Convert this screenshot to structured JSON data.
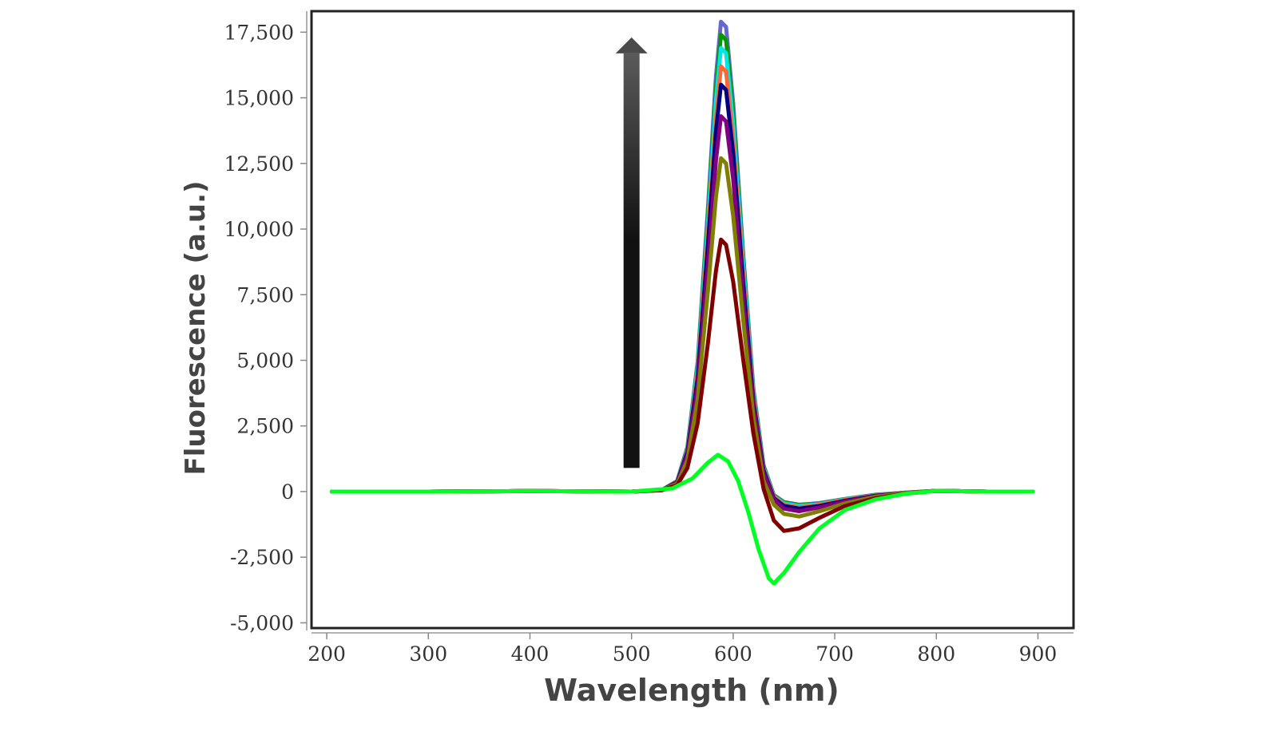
{
  "chart_data": {
    "type": "line",
    "title": "",
    "xlabel": "Wavelength (nm)",
    "ylabel": "Fluorescence (a.u.)",
    "xlim": [
      185,
      935
    ],
    "ylim": [
      -5200,
      18300
    ],
    "x_ticks": [
      200,
      300,
      400,
      500,
      600,
      700,
      800,
      900
    ],
    "x_tick_labels": [
      "200",
      "300",
      "400",
      "500",
      "600",
      "700",
      "800",
      "900"
    ],
    "y_ticks": [
      -5000,
      -2500,
      0,
      2500,
      5000,
      7500,
      10000,
      12500,
      15000,
      17500
    ],
    "y_tick_labels": [
      "-5,000",
      "-2,500",
      "0",
      "2,500",
      "5,000",
      "7,500",
      "10,000",
      "12,500",
      "15,000",
      "17,500"
    ],
    "grid": false,
    "legend": "none",
    "annotation": {
      "type": "arrow",
      "direction": "up",
      "x": 500,
      "y_from": 900,
      "y_to": 17300,
      "color": "#111111"
    },
    "series": [
      {
        "color": "#00ff22",
        "values": [
          [
            205,
            0
          ],
          [
            300,
            0
          ],
          [
            400,
            20
          ],
          [
            500,
            0
          ],
          [
            540,
            120
          ],
          [
            560,
            500
          ],
          [
            575,
            1100
          ],
          [
            585,
            1400
          ],
          [
            595,
            1150
          ],
          [
            605,
            400
          ],
          [
            615,
            -800
          ],
          [
            625,
            -2200
          ],
          [
            635,
            -3300
          ],
          [
            640,
            -3500
          ],
          [
            650,
            -3100
          ],
          [
            665,
            -2300
          ],
          [
            685,
            -1400
          ],
          [
            710,
            -700
          ],
          [
            740,
            -300
          ],
          [
            770,
            -80
          ],
          [
            800,
            30
          ],
          [
            850,
            0
          ],
          [
            895,
            0
          ]
        ]
      },
      {
        "color": "#800000",
        "values": [
          [
            205,
            0
          ],
          [
            300,
            0
          ],
          [
            400,
            20
          ],
          [
            500,
            0
          ],
          [
            530,
            50
          ],
          [
            545,
            250
          ],
          [
            555,
            900
          ],
          [
            565,
            2600
          ],
          [
            575,
            5600
          ],
          [
            583,
            8400
          ],
          [
            588,
            9600
          ],
          [
            593,
            9400
          ],
          [
            600,
            8000
          ],
          [
            610,
            5000
          ],
          [
            620,
            2200
          ],
          [
            630,
            100
          ],
          [
            640,
            -1100
          ],
          [
            650,
            -1500
          ],
          [
            665,
            -1400
          ],
          [
            685,
            -1000
          ],
          [
            710,
            -550
          ],
          [
            740,
            -250
          ],
          [
            770,
            -80
          ],
          [
            800,
            30
          ],
          [
            850,
            0
          ],
          [
            895,
            0
          ]
        ]
      },
      {
        "color": "#808000",
        "values": [
          [
            205,
            0
          ],
          [
            300,
            0
          ],
          [
            400,
            20
          ],
          [
            500,
            0
          ],
          [
            530,
            60
          ],
          [
            545,
            300
          ],
          [
            555,
            1200
          ],
          [
            565,
            3500
          ],
          [
            575,
            7600
          ],
          [
            583,
            11200
          ],
          [
            588,
            12700
          ],
          [
            593,
            12500
          ],
          [
            600,
            10500
          ],
          [
            610,
            6500
          ],
          [
            620,
            2800
          ],
          [
            630,
            400
          ],
          [
            640,
            -500
          ],
          [
            650,
            -850
          ],
          [
            665,
            -950
          ],
          [
            685,
            -750
          ],
          [
            710,
            -450
          ],
          [
            740,
            -200
          ],
          [
            770,
            -60
          ],
          [
            800,
            30
          ],
          [
            850,
            0
          ],
          [
            895,
            0
          ]
        ]
      },
      {
        "color": "#800080",
        "values": [
          [
            205,
            0
          ],
          [
            300,
            0
          ],
          [
            400,
            20
          ],
          [
            500,
            0
          ],
          [
            530,
            60
          ],
          [
            545,
            350
          ],
          [
            555,
            1400
          ],
          [
            565,
            4000
          ],
          [
            575,
            8600
          ],
          [
            583,
            12600
          ],
          [
            588,
            14300
          ],
          [
            593,
            14100
          ],
          [
            600,
            11900
          ],
          [
            610,
            7300
          ],
          [
            620,
            3200
          ],
          [
            630,
            700
          ],
          [
            640,
            -300
          ],
          [
            650,
            -650
          ],
          [
            665,
            -750
          ],
          [
            685,
            -600
          ],
          [
            710,
            -380
          ],
          [
            740,
            -180
          ],
          [
            770,
            -50
          ],
          [
            800,
            30
          ],
          [
            850,
            0
          ],
          [
            895,
            0
          ]
        ]
      },
      {
        "color": "#000080",
        "values": [
          [
            205,
            0
          ],
          [
            300,
            0
          ],
          [
            400,
            20
          ],
          [
            500,
            0
          ],
          [
            530,
            60
          ],
          [
            545,
            370
          ],
          [
            555,
            1500
          ],
          [
            565,
            4300
          ],
          [
            575,
            9300
          ],
          [
            583,
            13700
          ],
          [
            588,
            15500
          ],
          [
            593,
            15300
          ],
          [
            600,
            12900
          ],
          [
            610,
            7900
          ],
          [
            620,
            3400
          ],
          [
            630,
            800
          ],
          [
            640,
            -250
          ],
          [
            650,
            -550
          ],
          [
            665,
            -650
          ],
          [
            685,
            -550
          ],
          [
            710,
            -350
          ],
          [
            740,
            -160
          ],
          [
            770,
            -50
          ],
          [
            800,
            30
          ],
          [
            850,
            0
          ],
          [
            895,
            0
          ]
        ]
      },
      {
        "color": "#ff6633",
        "values": [
          [
            205,
            0
          ],
          [
            300,
            0
          ],
          [
            400,
            20
          ],
          [
            500,
            0
          ],
          [
            530,
            60
          ],
          [
            545,
            380
          ],
          [
            555,
            1550
          ],
          [
            565,
            4500
          ],
          [
            575,
            9700
          ],
          [
            583,
            14200
          ],
          [
            588,
            16200
          ],
          [
            593,
            16000
          ],
          [
            600,
            13400
          ],
          [
            610,
            8200
          ],
          [
            620,
            3600
          ],
          [
            630,
            850
          ],
          [
            640,
            -200
          ],
          [
            650,
            -500
          ],
          [
            665,
            -600
          ],
          [
            685,
            -500
          ],
          [
            710,
            -320
          ],
          [
            740,
            -150
          ],
          [
            770,
            -40
          ],
          [
            800,
            30
          ],
          [
            850,
            0
          ],
          [
            895,
            0
          ]
        ]
      },
      {
        "color": "#00e5e5",
        "values": [
          [
            205,
            0
          ],
          [
            300,
            0
          ],
          [
            400,
            20
          ],
          [
            500,
            0
          ],
          [
            530,
            60
          ],
          [
            545,
            390
          ],
          [
            555,
            1600
          ],
          [
            565,
            4700
          ],
          [
            575,
            10100
          ],
          [
            583,
            14900
          ],
          [
            588,
            16900
          ],
          [
            593,
            16700
          ],
          [
            600,
            14000
          ],
          [
            610,
            8600
          ],
          [
            620,
            3700
          ],
          [
            630,
            900
          ],
          [
            640,
            -180
          ],
          [
            650,
            -450
          ],
          [
            665,
            -550
          ],
          [
            685,
            -480
          ],
          [
            710,
            -300
          ],
          [
            740,
            -140
          ],
          [
            770,
            -40
          ],
          [
            800,
            30
          ],
          [
            850,
            0
          ],
          [
            895,
            0
          ]
        ]
      },
      {
        "color": "#009900",
        "values": [
          [
            205,
            0
          ],
          [
            300,
            0
          ],
          [
            400,
            20
          ],
          [
            500,
            0
          ],
          [
            530,
            60
          ],
          [
            545,
            400
          ],
          [
            555,
            1650
          ],
          [
            565,
            4800
          ],
          [
            575,
            10400
          ],
          [
            583,
            15300
          ],
          [
            588,
            17400
          ],
          [
            593,
            17200
          ],
          [
            600,
            14400
          ],
          [
            610,
            8800
          ],
          [
            620,
            3800
          ],
          [
            630,
            950
          ],
          [
            640,
            -150
          ],
          [
            650,
            -420
          ],
          [
            665,
            -520
          ],
          [
            685,
            -460
          ],
          [
            710,
            -290
          ],
          [
            740,
            -130
          ],
          [
            770,
            -40
          ],
          [
            800,
            30
          ],
          [
            850,
            0
          ],
          [
            895,
            0
          ]
        ]
      },
      {
        "color": "#6666cc",
        "values": [
          [
            205,
            0
          ],
          [
            300,
            0
          ],
          [
            400,
            20
          ],
          [
            500,
            0
          ],
          [
            530,
            60
          ],
          [
            545,
            410
          ],
          [
            555,
            1700
          ],
          [
            565,
            4950
          ],
          [
            575,
            10700
          ],
          [
            583,
            15800
          ],
          [
            588,
            17900
          ],
          [
            593,
            17700
          ],
          [
            600,
            14800
          ],
          [
            610,
            9000
          ],
          [
            620,
            3900
          ],
          [
            630,
            1000
          ],
          [
            640,
            -130
          ],
          [
            650,
            -400
          ],
          [
            665,
            -500
          ],
          [
            685,
            -440
          ],
          [
            710,
            -280
          ],
          [
            740,
            -120
          ],
          [
            770,
            -40
          ],
          [
            800,
            30
          ],
          [
            850,
            0
          ],
          [
            895,
            0
          ]
        ]
      }
    ]
  }
}
